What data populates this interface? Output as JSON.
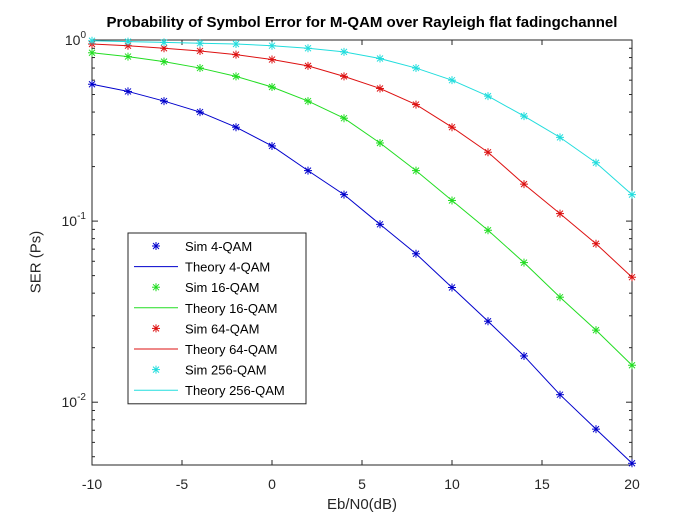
{
  "chart_data": {
    "type": "line",
    "title": "Probability of Symbol Error for M-QAM over Rayleigh flat fadingchannel",
    "xlabel": "Eb/N0(dB)",
    "ylabel": "SER (Ps)",
    "xlim": [
      -10,
      20
    ],
    "ylim": [
      0.0045,
      1
    ],
    "yscale": "log",
    "grid": false,
    "legend_position": "left-middle",
    "x_ticks": [
      -10,
      -5,
      0,
      5,
      10,
      15,
      20
    ],
    "x_tick_labels": [
      "-10",
      "-5",
      "0",
      "5",
      "10",
      "15",
      "20"
    ],
    "y_ticks": [
      0.01,
      0.1,
      1
    ],
    "y_tick_labels": [
      {
        "base": "10",
        "exp": "-2"
      },
      {
        "base": "10",
        "exp": "-1"
      },
      {
        "base": "10",
        "exp": "0"
      }
    ],
    "x": [
      -10,
      -8,
      -6,
      -4,
      -2,
      0,
      2,
      4,
      6,
      8,
      10,
      12,
      14,
      16,
      18,
      20
    ],
    "series": [
      {
        "name": "Sim 4-QAM",
        "style": "marker",
        "color": "#0000cc",
        "values": [
          0.57,
          0.52,
          0.46,
          0.4,
          0.33,
          0.26,
          0.19,
          0.14,
          0.096,
          0.066,
          0.043,
          0.028,
          0.018,
          0.011,
          0.0071,
          0.0046
        ]
      },
      {
        "name": "Theory 4-QAM",
        "style": "line",
        "color": "#0000cc",
        "values": [
          0.57,
          0.52,
          0.46,
          0.4,
          0.33,
          0.26,
          0.19,
          0.14,
          0.096,
          0.066,
          0.043,
          0.028,
          0.018,
          0.011,
          0.0071,
          0.0046
        ]
      },
      {
        "name": "Sim 16-QAM",
        "style": "marker",
        "color": "#22dd22",
        "values": [
          0.85,
          0.81,
          0.76,
          0.7,
          0.63,
          0.55,
          0.46,
          0.37,
          0.27,
          0.19,
          0.13,
          0.089,
          0.059,
          0.038,
          0.025,
          0.016
        ]
      },
      {
        "name": "Theory 16-QAM",
        "style": "line",
        "color": "#22dd22",
        "values": [
          0.85,
          0.81,
          0.76,
          0.7,
          0.63,
          0.55,
          0.46,
          0.37,
          0.27,
          0.19,
          0.13,
          0.089,
          0.059,
          0.038,
          0.025,
          0.016
        ]
      },
      {
        "name": "Sim 64-QAM",
        "style": "marker",
        "color": "#dd1111",
        "values": [
          0.95,
          0.93,
          0.9,
          0.87,
          0.83,
          0.78,
          0.72,
          0.63,
          0.54,
          0.44,
          0.33,
          0.24,
          0.16,
          0.11,
          0.075,
          0.049
        ]
      },
      {
        "name": "Theory 64-QAM",
        "style": "line",
        "color": "#dd1111",
        "values": [
          0.95,
          0.93,
          0.9,
          0.87,
          0.83,
          0.78,
          0.72,
          0.63,
          0.54,
          0.44,
          0.33,
          0.24,
          0.16,
          0.11,
          0.075,
          0.049
        ]
      },
      {
        "name": "Sim 256-QAM",
        "style": "marker",
        "color": "#22dddd",
        "values": [
          0.99,
          0.98,
          0.97,
          0.96,
          0.95,
          0.93,
          0.9,
          0.86,
          0.79,
          0.7,
          0.6,
          0.49,
          0.38,
          0.29,
          0.21,
          0.14
        ]
      },
      {
        "name": "Theory 256-QAM",
        "style": "line",
        "color": "#22dddd",
        "values": [
          0.99,
          0.98,
          0.97,
          0.96,
          0.95,
          0.93,
          0.9,
          0.86,
          0.79,
          0.7,
          0.6,
          0.49,
          0.38,
          0.29,
          0.21,
          0.14
        ]
      }
    ]
  }
}
